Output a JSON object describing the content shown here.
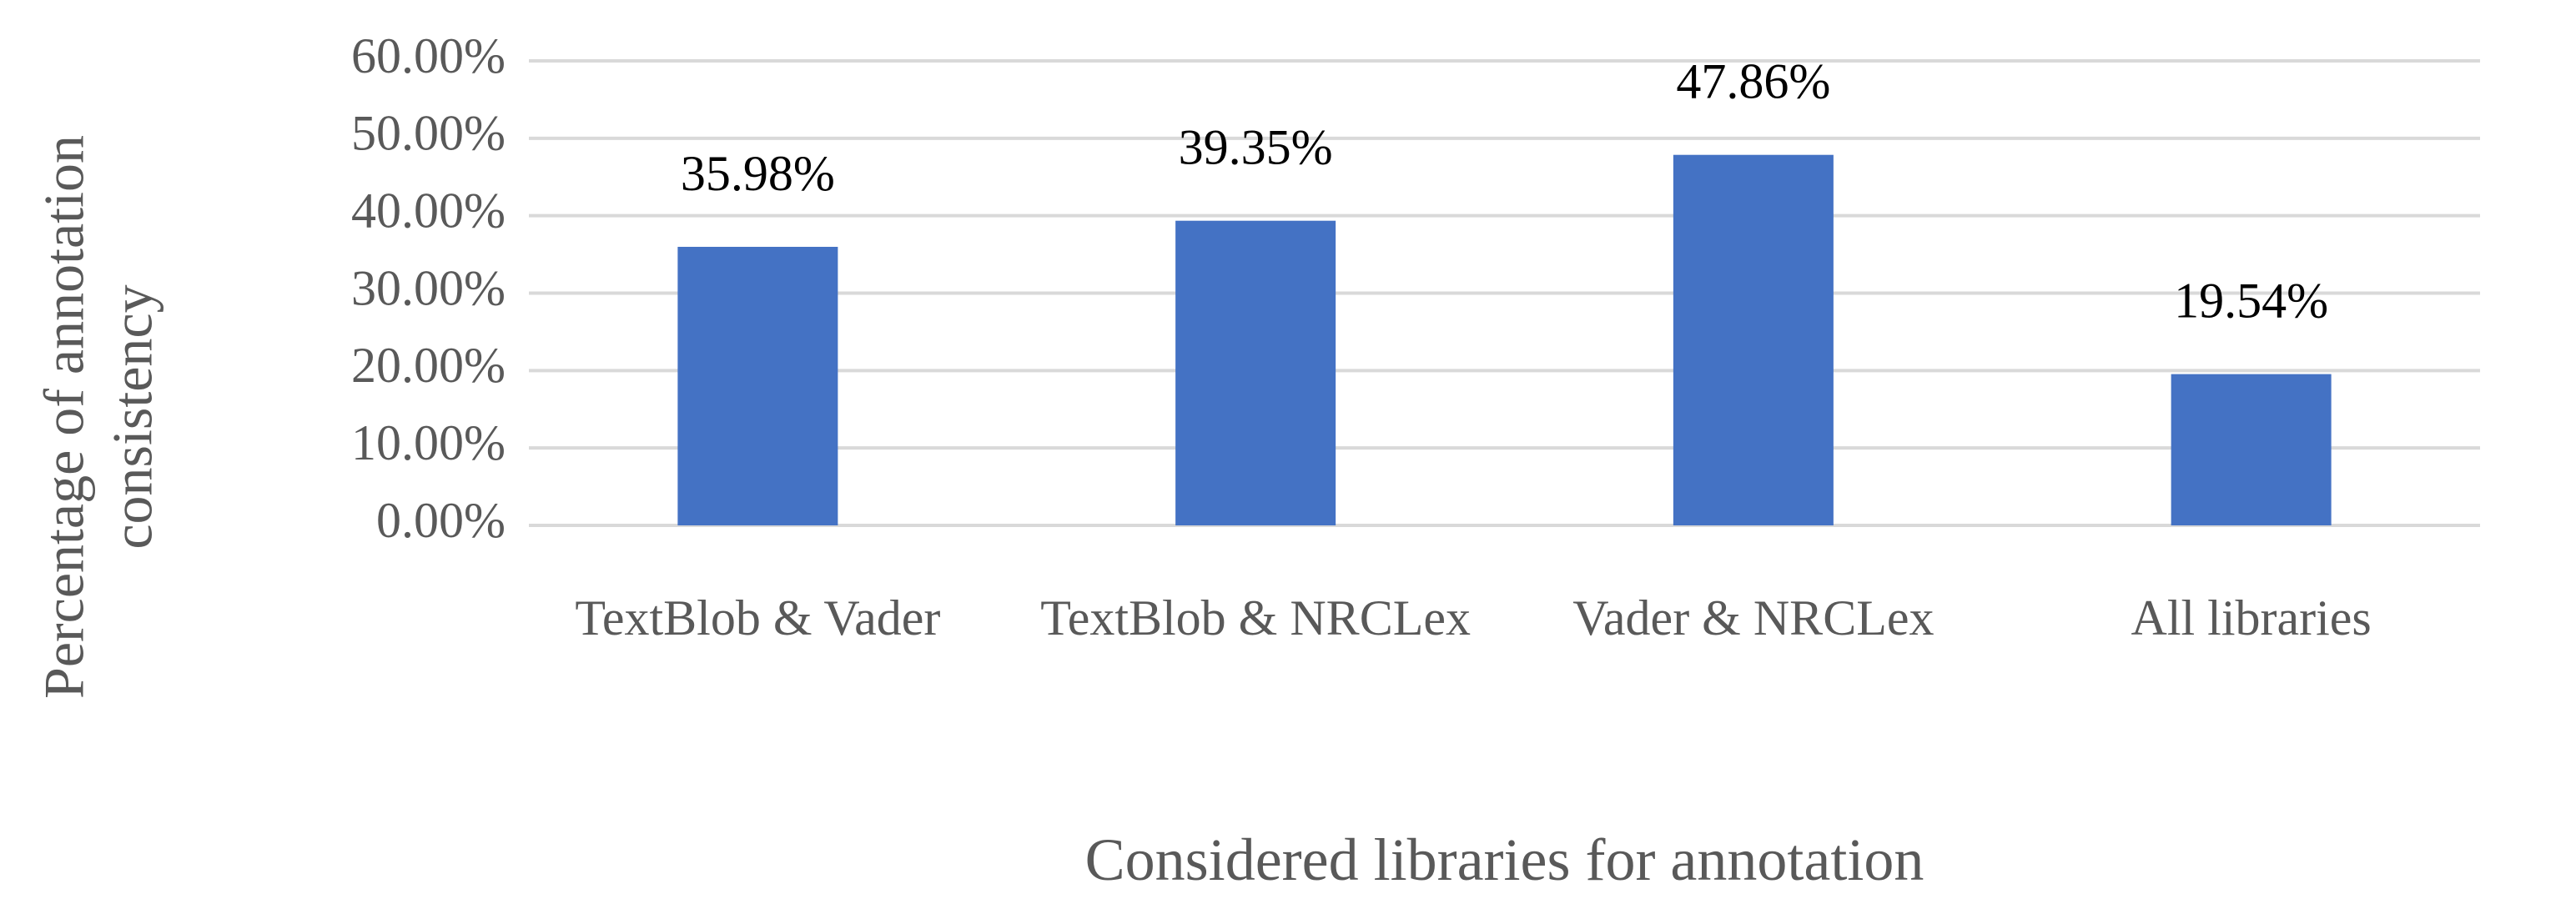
{
  "chart_data": {
    "type": "bar",
    "x_label": "Considered libraries for annotation",
    "y_label": "Percentage of annotation consistency",
    "categories": [
      "TextBlob & Vader",
      "TextBlob & NRCLex",
      "Vader & NRCLex",
      "All libraries"
    ],
    "values": [
      35.98,
      39.35,
      47.86,
      19.54
    ],
    "value_labels": [
      "35.98%",
      "39.35%",
      "47.86%",
      "19.54%"
    ],
    "color": "#4472c4",
    "ylim": [
      0,
      60
    ],
    "yticks": [
      {
        "value": 0,
        "label": "0.00%"
      },
      {
        "value": 10,
        "label": "10.00%"
      },
      {
        "value": 20,
        "label": "20.00%"
      },
      {
        "value": 30,
        "label": "30.00%"
      },
      {
        "value": 40,
        "label": "40.00%"
      },
      {
        "value": 50,
        "label": "50.00%"
      },
      {
        "value": 60,
        "label": "60.00%"
      }
    ],
    "grid": true
  }
}
